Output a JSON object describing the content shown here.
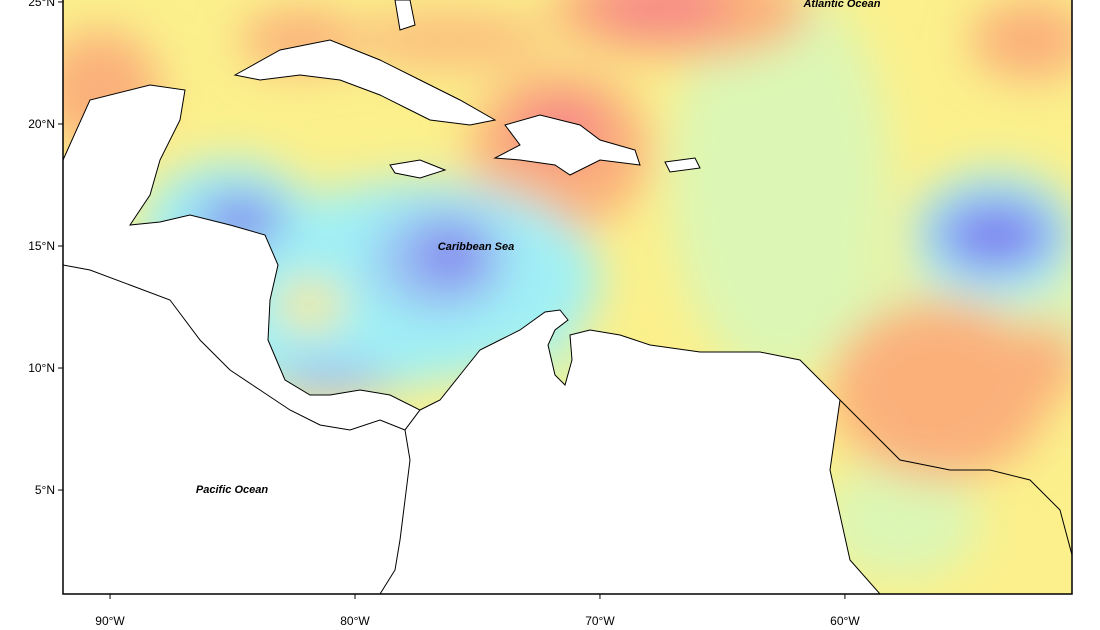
{
  "map": {
    "xlim": [
      -91.92,
      -50.73
    ],
    "ylim": [
      0.74,
      25.08
    ],
    "xticks": [
      {
        "value": -90,
        "label": "90°W"
      },
      {
        "value": -80,
        "label": "80°W"
      },
      {
        "value": -70,
        "label": "70°W"
      },
      {
        "value": -60,
        "label": "60°W"
      }
    ],
    "yticks": [
      {
        "value": 5,
        "label": "5°N"
      },
      {
        "value": 10,
        "label": "10°N"
      },
      {
        "value": 15,
        "label": "15°N"
      },
      {
        "value": 20,
        "label": "20°N"
      },
      {
        "value": 25,
        "label": "25°N"
      }
    ],
    "labels": [
      "Atlantic Ocean",
      "Caribbean Sea",
      "Pacific Ocean"
    ]
  }
}
